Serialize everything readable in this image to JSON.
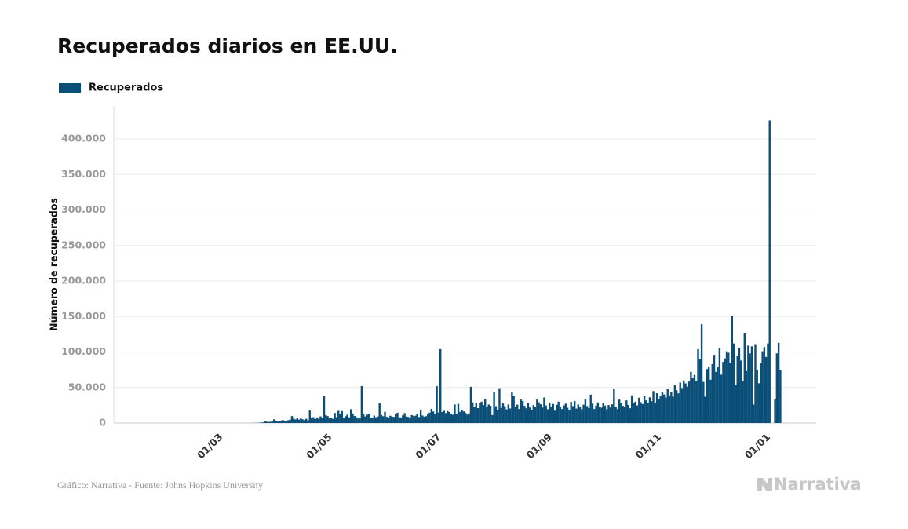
{
  "chart_data": {
    "type": "bar",
    "title": "Recuperados diarios en EE.UU.",
    "y_label": "Número de recuperados",
    "source": "Gráfico: Narrativa - Fuente: Johns Hopkins University",
    "logo": "Narrativa",
    "series": [
      {
        "name": "Recuperados",
        "color": "#0b4f78",
        "values": [
          0,
          0,
          0,
          0,
          0,
          0,
          0,
          0,
          0,
          0,
          0,
          0,
          0,
          0,
          1,
          0,
          0,
          2,
          0,
          0,
          0,
          1,
          0,
          0,
          0,
          0,
          0,
          0,
          0,
          0,
          0,
          0,
          0,
          0,
          0,
          0,
          1,
          0,
          3,
          0,
          0,
          2,
          1,
          0,
          4,
          0,
          1,
          3,
          0,
          2,
          5,
          4,
          9,
          12,
          0,
          30,
          20,
          45,
          60,
          80,
          110,
          150,
          190,
          300,
          400,
          700,
          900,
          2400,
          1900,
          1500,
          1800,
          2100,
          5200,
          3100,
          2400,
          2900,
          3500,
          4200,
          2800,
          3300,
          4000,
          4700,
          9800,
          6200,
          5100,
          7300,
          4800,
          6500,
          5200,
          4100,
          5900,
          3800,
          17500,
          6700,
          8200,
          5600,
          7900,
          6100,
          9400,
          7200,
          38000,
          11200,
          9800,
          6800,
          7400,
          5900,
          14100,
          8300,
          17200,
          12600,
          16800,
          7200,
          9600,
          11800,
          8100,
          19400,
          13500,
          9900,
          8200,
          6400,
          7600,
          52000,
          12100,
          9400,
          11800,
          13200,
          7800,
          6900,
          10400,
          8100,
          9200,
          28000,
          11300,
          9600,
          15800,
          8700,
          7400,
          10200,
          9100,
          8600,
          13200,
          14500,
          8100,
          7900,
          10800,
          14000,
          9200,
          8600,
          7700,
          11200,
          9800,
          10300,
          12800,
          8400,
          18200,
          10600,
          8900,
          9700,
          12400,
          14600,
          20000,
          16200,
          12400,
          52000,
          14800,
          104000,
          15600,
          17200,
          14100,
          16800,
          15500,
          13200,
          11700,
          26000,
          12900,
          27000,
          15800,
          18100,
          16400,
          14300,
          11900,
          13600,
          51000,
          29000,
          22400,
          28500,
          21000,
          27900,
          30100,
          25200,
          34000,
          22800,
          26100,
          24300,
          11200,
          44000,
          23700,
          18600,
          49000,
          21400,
          27500,
          23800,
          19200,
          26100,
          20500,
          43000,
          38000,
          22100,
          25900,
          19800,
          33000,
          31000,
          24200,
          20700,
          27800,
          21900,
          18700,
          25300,
          22600,
          33000,
          29200,
          26400,
          21800,
          36000,
          24700,
          19500,
          28300,
          22900,
          26800,
          17400,
          25600,
          30100,
          22200,
          19800,
          24900,
          27300,
          21500,
          18600,
          29700,
          23800,
          31000,
          20400,
          26100,
          22700,
          19300,
          25800,
          34000,
          23900,
          21100,
          40000,
          27200,
          19800,
          24500,
          29000,
          22300,
          21700,
          27900,
          24600,
          19500,
          25400,
          21800,
          26300,
          48000,
          23100,
          19700,
          33000,
          28600,
          24200,
          22400,
          31800,
          25500,
          20800,
          39000,
          27600,
          30200,
          24800,
          35600,
          29300,
          26700,
          38000,
          31900,
          28400,
          36200,
          30700,
          45000,
          27800,
          42000,
          33500,
          38700,
          44000,
          40200,
          35800,
          48000,
          38900,
          43600,
          37200,
          53000,
          46100,
          41800,
          57000,
          49300,
          60000,
          55800,
          51200,
          58400,
          72000,
          63500,
          67800,
          59600,
          104000,
          90000,
          139000,
          58000,
          37000,
          76000,
          79000,
          61000,
          83000,
          96000,
          72000,
          79000,
          105000,
          68000,
          86000,
          91000,
          101000,
          99000,
          84000,
          151000,
          112000,
          53000,
          95000,
          106000,
          88000,
          59000,
          127000,
          73000,
          109000,
          98000,
          108000,
          26000,
          111000,
          74000,
          56000,
          84000,
          101000,
          107000,
          93000,
          112000,
          426000,
          0,
          0,
          33000,
          98000,
          113000,
          74000
        ]
      }
    ],
    "categories": [
      null,
      null,
      null,
      null,
      null,
      null,
      null,
      null,
      null,
      null,
      null,
      null,
      null,
      null,
      null,
      null,
      null,
      null,
      null,
      null,
      null,
      null,
      null,
      null,
      null,
      null,
      null,
      null,
      null,
      null,
      null,
      null,
      null,
      null,
      null,
      null,
      null,
      null,
      null,
      "01/03",
      null,
      null,
      null,
      null,
      null,
      null,
      null,
      null,
      null,
      null,
      null,
      null,
      null,
      null,
      null,
      null,
      null,
      null,
      null,
      null,
      null,
      null,
      null,
      null,
      null,
      null,
      null,
      null,
      null,
      null,
      null,
      null,
      null,
      null,
      null,
      null,
      null,
      null,
      null,
      null,
      null,
      null,
      null,
      null,
      null,
      null,
      null,
      null,
      null,
      null,
      null,
      null,
      null,
      null,
      null,
      null,
      null,
      null,
      null,
      null,
      "01/05",
      null,
      null,
      null,
      null,
      null,
      null,
      null,
      null,
      null,
      null,
      null,
      null,
      null,
      null,
      null,
      null,
      null,
      null,
      null,
      null,
      null,
      null,
      null,
      null,
      null,
      null,
      null,
      null,
      null,
      null,
      null,
      null,
      null,
      null,
      null,
      null,
      null,
      null,
      null,
      null,
      null,
      null,
      null,
      null,
      null,
      null,
      null,
      null,
      null,
      null,
      null,
      null,
      null,
      null,
      null,
      null,
      null,
      null,
      null,
      null,
      "01/07",
      null,
      null,
      null,
      null,
      null,
      null,
      null,
      null,
      null,
      null,
      null,
      null,
      null,
      null,
      null,
      null,
      null,
      null,
      null,
      null,
      null,
      null,
      null,
      null,
      null,
      null,
      null,
      null,
      null,
      null,
      null,
      null,
      null,
      null,
      null,
      null,
      null,
      null,
      null,
      null,
      null,
      null,
      null,
      null,
      null,
      null,
      null,
      null,
      null,
      null,
      null,
      null,
      null,
      null,
      null,
      null,
      null,
      null,
      null,
      null,
      null,
      "01/09",
      null,
      null,
      null,
      null,
      null,
      null,
      null,
      null,
      null,
      null,
      null,
      null,
      null,
      null,
      null,
      null,
      null,
      null,
      null,
      null,
      null,
      null,
      null,
      null,
      null,
      null,
      null,
      null,
      null,
      null,
      null,
      null,
      null,
      null,
      null,
      null,
      null,
      null,
      null,
      null,
      null,
      null,
      null,
      null,
      null,
      null,
      null,
      null,
      null,
      null,
      null,
      null,
      null,
      null,
      null,
      null,
      null,
      null,
      null,
      null,
      "01/11",
      null,
      null,
      null,
      null,
      null,
      null,
      null,
      null,
      null,
      null,
      null,
      null,
      null,
      null,
      null,
      null,
      null,
      null,
      null,
      null,
      null,
      null,
      null,
      null,
      null,
      null,
      null,
      null,
      null,
      null,
      null,
      null,
      null,
      null,
      null,
      null,
      null,
      null,
      null,
      null,
      null,
      null,
      null,
      null,
      null,
      null,
      null,
      null,
      null,
      null,
      null,
      null,
      null,
      null,
      null,
      null,
      null,
      null,
      null,
      null,
      "01/01",
      null,
      null,
      null,
      null,
      null,
      null,
      null,
      null,
      null,
      null
    ],
    "ylim": [
      0,
      440000
    ],
    "yticks": [
      0,
      {
        "value": 50000,
        "label": "50.000"
      },
      {
        "value": 100000,
        "label": "100.000"
      },
      {
        "value": 150000,
        "label": "150.000"
      },
      {
        "value": 200000,
        "label": "200.000"
      },
      {
        "value": 250000,
        "label": "250.000"
      },
      {
        "value": 300000,
        "label": "300.000"
      },
      {
        "value": 350000,
        "label": "350.000"
      },
      {
        "value": 400000,
        "label": "400.000"
      }
    ],
    "grid": true
  }
}
